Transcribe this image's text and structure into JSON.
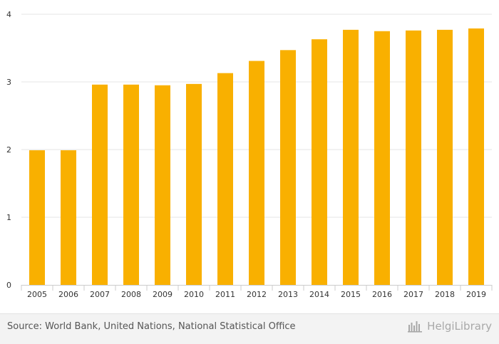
{
  "chart_data": {
    "type": "bar",
    "title": "",
    "xlabel": "",
    "ylabel": "",
    "categories": [
      "2005",
      "2006",
      "2007",
      "2008",
      "2009",
      "2010",
      "2011",
      "2012",
      "2013",
      "2014",
      "2015",
      "2016",
      "2017",
      "2018",
      "2019"
    ],
    "values": [
      1.99,
      1.99,
      2.96,
      2.96,
      2.95,
      2.97,
      3.13,
      3.31,
      3.47,
      3.63,
      3.77,
      3.75,
      3.76,
      3.77,
      3.79
    ],
    "ylim": [
      0,
      4
    ],
    "yticks": [
      "0",
      "1",
      "2",
      "3",
      "4"
    ],
    "grid": true,
    "bar_color": "#f9b000"
  },
  "footer": {
    "source": "Source: World Bank, United Nations, National Statistical Office",
    "brand": "HelgiLibrary",
    "brand_icon": "helgi-library-icon"
  },
  "colors": {
    "grid": "#e6e6e6",
    "axis": "#cccccc",
    "text": "#333333"
  }
}
